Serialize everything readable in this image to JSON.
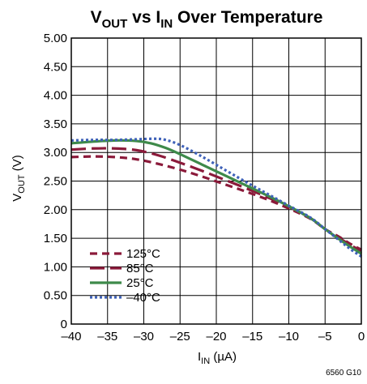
{
  "chart_data": {
    "type": "line",
    "title": {
      "v": "V",
      "v_sub": "OUT",
      "mid": " vs I",
      "i_sub": "IN",
      "rest": " Over Temperature"
    },
    "xlabel": {
      "main": "I",
      "sub": "IN",
      "unit": " (µA)"
    },
    "ylabel": {
      "main": "V",
      "sub": "OUT",
      "unit": " (V)"
    },
    "xlim": [
      -40,
      0
    ],
    "ylim": [
      0,
      5
    ],
    "x_ticks": [
      -40,
      -35,
      -30,
      -25,
      -20,
      -15,
      -10,
      -5,
      0
    ],
    "x_tick_labels": [
      "–40",
      "–35",
      "–30",
      "–25",
      "–20",
      "–15",
      "–10",
      "–5",
      "0"
    ],
    "y_ticks": [
      0,
      0.5,
      1.0,
      1.5,
      2.0,
      2.5,
      3.0,
      3.5,
      4.0,
      4.5,
      5.0
    ],
    "y_tick_labels": [
      "0",
      "0.50",
      "1.00",
      "1.50",
      "2.00",
      "2.50",
      "3.00",
      "3.50",
      "4.00",
      "4.50",
      "5.00"
    ],
    "grid": true,
    "legend_position": "bottom-left",
    "figure_id": "6560 G10",
    "series": [
      {
        "name": "125°C",
        "color": "#8b1a3a",
        "dash": "dash",
        "points": [
          [
            -40,
            2.92
          ],
          [
            -37,
            2.93
          ],
          [
            -34,
            2.92
          ],
          [
            -31,
            2.88
          ],
          [
            -28,
            2.8
          ],
          [
            -25,
            2.7
          ],
          [
            -22,
            2.58
          ],
          [
            -19,
            2.45
          ],
          [
            -16,
            2.32
          ],
          [
            -13,
            2.18
          ],
          [
            -10,
            2.02
          ],
          [
            -7,
            1.84
          ],
          [
            -5,
            1.66
          ],
          [
            -3,
            1.52
          ],
          [
            -1.5,
            1.4
          ],
          [
            0,
            1.3
          ]
        ]
      },
      {
        "name": "85°C",
        "color": "#8b1a3a",
        "dash": "longdash",
        "points": [
          [
            -40,
            3.05
          ],
          [
            -37,
            3.07
          ],
          [
            -34,
            3.07
          ],
          [
            -31,
            3.04
          ],
          [
            -28,
            2.95
          ],
          [
            -25,
            2.82
          ],
          [
            -22,
            2.68
          ],
          [
            -19,
            2.53
          ],
          [
            -16,
            2.38
          ],
          [
            -13,
            2.22
          ],
          [
            -10,
            2.05
          ],
          [
            -7,
            1.85
          ],
          [
            -5,
            1.66
          ],
          [
            -3,
            1.5
          ],
          [
            -1.5,
            1.38
          ],
          [
            0,
            1.28
          ]
        ]
      },
      {
        "name": "25°C",
        "color": "#3e8a4a",
        "dash": "solid",
        "points": [
          [
            -40,
            3.16
          ],
          [
            -37,
            3.19
          ],
          [
            -34,
            3.21
          ],
          [
            -31,
            3.2
          ],
          [
            -29,
            3.16
          ],
          [
            -27,
            3.08
          ],
          [
            -25,
            2.97
          ],
          [
            -22,
            2.79
          ],
          [
            -19,
            2.61
          ],
          [
            -16,
            2.43
          ],
          [
            -13,
            2.25
          ],
          [
            -10,
            2.06
          ],
          [
            -7,
            1.85
          ],
          [
            -5,
            1.66
          ],
          [
            -3,
            1.48
          ],
          [
            -1.5,
            1.35
          ],
          [
            0,
            1.23
          ]
        ]
      },
      {
        "name": "–40°C",
        "color": "#3e61b8",
        "dash": "dot",
        "points": [
          [
            -40,
            3.21
          ],
          [
            -37,
            3.22
          ],
          [
            -34,
            3.22
          ],
          [
            -31,
            3.23
          ],
          [
            -28.5,
            3.24
          ],
          [
            -27,
            3.22
          ],
          [
            -25,
            3.13
          ],
          [
            -22,
            2.93
          ],
          [
            -19,
            2.71
          ],
          [
            -16,
            2.49
          ],
          [
            -13,
            2.28
          ],
          [
            -10,
            2.07
          ],
          [
            -7,
            1.86
          ],
          [
            -5,
            1.66
          ],
          [
            -3,
            1.46
          ],
          [
            -1.5,
            1.31
          ],
          [
            0,
            1.18
          ]
        ]
      }
    ]
  }
}
